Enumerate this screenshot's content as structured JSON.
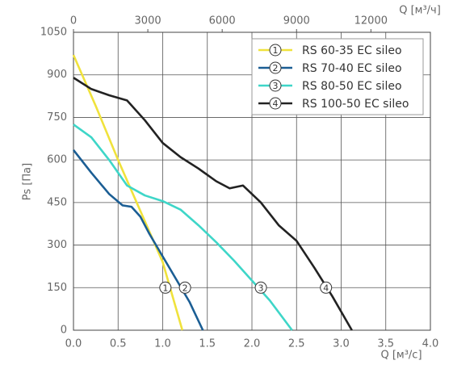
{
  "chart_data": {
    "type": "line",
    "xlabel": "Q [м³/с]",
    "x2label": "Q [м³/ч]",
    "ylabel": "Ps [Па]",
    "xlim": [
      0,
      4
    ],
    "xticks": [
      {
        "value": 0,
        "label": "0.0"
      },
      0.5,
      {
        "value": 1,
        "label": "1.0"
      },
      1.5,
      {
        "value": 2,
        "label": "2.0"
      },
      2.5,
      {
        "value": 3,
        "label": "3.0"
      },
      3.5,
      {
        "value": 4,
        "label": "4.0"
      }
    ],
    "x2lim": [
      0,
      14400
    ],
    "x2ticks": [
      0,
      3000,
      6000,
      9000,
      12000
    ],
    "ylim": [
      0,
      1050
    ],
    "yticks": [
      0,
      150,
      300,
      450,
      600,
      750,
      900,
      1050
    ],
    "grid": true,
    "legend": "top-right",
    "series": [
      {
        "name": "RS 60-35 EC sileo",
        "label": "1",
        "color": "#f0e23c",
        "x": [
          0,
          0.25,
          0.5,
          0.75,
          1.0,
          1.22
        ],
        "values": [
          970,
          790,
          600,
          420,
          240,
          0
        ],
        "marker": {
          "x": 1.03,
          "y": 150
        }
      },
      {
        "name": "RS 70-40 EC sileo",
        "label": "2",
        "color": "#1b5e94",
        "x": [
          0,
          0.2,
          0.4,
          0.55,
          0.65,
          0.75,
          0.85,
          1.0,
          1.15,
          1.3,
          1.45
        ],
        "values": [
          635,
          555,
          480,
          440,
          435,
          400,
          340,
          260,
          180,
          100,
          0
        ],
        "marker": {
          "x": 1.25,
          "y": 150
        }
      },
      {
        "name": "RS 80-50 EC sileo",
        "label": "3",
        "color": "#3ed6c8",
        "x": [
          0,
          0.2,
          0.4,
          0.6,
          0.8,
          1.0,
          1.2,
          1.4,
          1.6,
          1.8,
          2.0,
          2.2,
          2.45
        ],
        "values": [
          725,
          680,
          600,
          510,
          475,
          455,
          425,
          370,
          310,
          245,
          175,
          105,
          0
        ],
        "marker": {
          "x": 2.1,
          "y": 150
        }
      },
      {
        "name": "RS 100-50 EC sileo",
        "label": "4",
        "color": "#222222",
        "x": [
          0,
          0.2,
          0.4,
          0.6,
          0.8,
          1.0,
          1.2,
          1.4,
          1.6,
          1.75,
          1.9,
          2.1,
          2.3,
          2.5,
          2.7,
          2.9,
          3.12
        ],
        "values": [
          890,
          850,
          828,
          810,
          740,
          660,
          610,
          570,
          525,
          500,
          510,
          450,
          370,
          315,
          220,
          120,
          0
        ],
        "marker": {
          "x": 2.83,
          "y": 150
        }
      }
    ]
  }
}
